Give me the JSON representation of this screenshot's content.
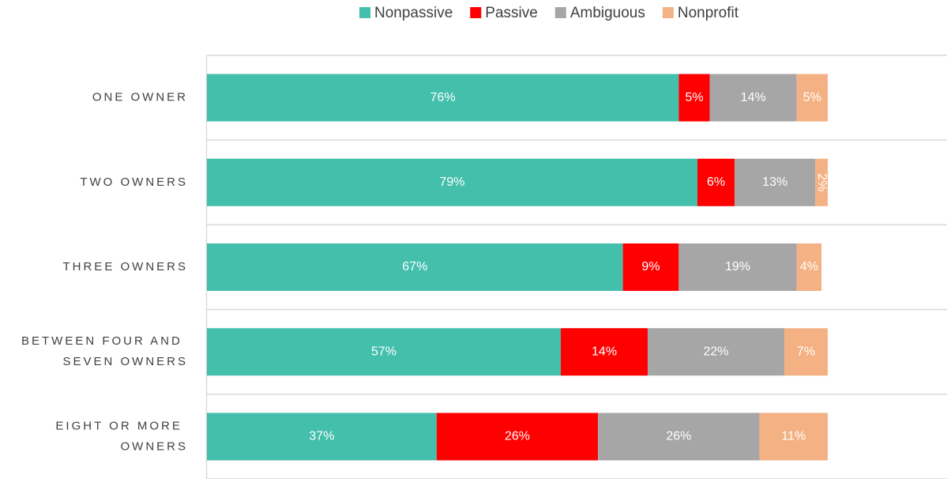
{
  "chart_data": {
    "type": "stacked_bar_horizontal",
    "categories": [
      "ONE OWNER",
      "TWO OWNERS",
      "THREE OWNERS",
      "BETWEEN FOUR AND SEVEN OWNERS",
      "EIGHT OR MORE OWNERS"
    ],
    "series": [
      {
        "name": "Nonpassive",
        "color": "#43bfac",
        "values": [
          76,
          79,
          67,
          57,
          37
        ],
        "value_labels": [
          "76%",
          "79%",
          "67%",
          "57%",
          "37%"
        ]
      },
      {
        "name": "Passive",
        "color": "#ff0000",
        "values": [
          5,
          6,
          9,
          14,
          26
        ],
        "value_labels": [
          "5%",
          "6%",
          "9%",
          "14%",
          "26%"
        ]
      },
      {
        "name": "Ambiguous",
        "color": "#a6a6a6",
        "values": [
          14,
          13,
          19,
          22,
          26
        ],
        "value_labels": [
          "14%",
          "13%",
          "19%",
          "22%",
          "26%"
        ]
      },
      {
        "name": "Nonprofit",
        "color": "#f4b183",
        "values": [
          5,
          2,
          4,
          7,
          11
        ],
        "value_labels": [
          "5%",
          "2%",
          "4%",
          "7%",
          "11%"
        ]
      }
    ],
    "xlim": [
      0,
      100
    ],
    "legend": "top"
  }
}
